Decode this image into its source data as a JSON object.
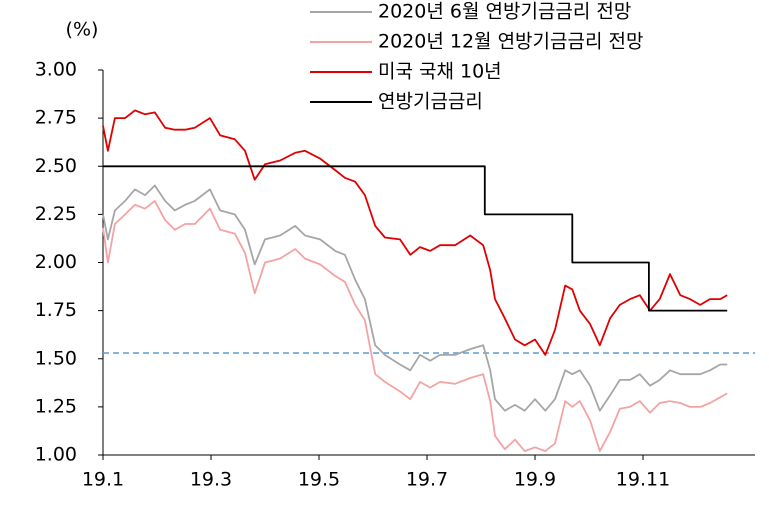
{
  "chart_data": {
    "type": "line",
    "y_label": "(%)",
    "xlim": [
      1,
      13
    ],
    "ylim": [
      1,
      3
    ],
    "xticks": [
      {
        "value": 1,
        "label": "19.1"
      },
      {
        "value": 3,
        "label": "19.3"
      },
      {
        "value": 5,
        "label": "19.5"
      },
      {
        "value": 7,
        "label": "19.7"
      },
      {
        "value": 9,
        "label": "19.9"
      },
      {
        "value": 11,
        "label": "19.11"
      }
    ],
    "yticks": [
      {
        "value": 1,
        "label": "1.00"
      },
      {
        "value": 1.25,
        "label": "1.25"
      },
      {
        "value": 1.5,
        "label": "1.50"
      },
      {
        "value": 1.75,
        "label": "1.75"
      },
      {
        "value": 2,
        "label": "2.00"
      },
      {
        "value": 2.25,
        "label": "2.25"
      },
      {
        "value": 2.5,
        "label": "2.50"
      },
      {
        "value": 2.75,
        "label": "2.75"
      },
      {
        "value": 3,
        "label": "3.00"
      }
    ],
    "legend": "top-right",
    "reference_line": {
      "value": 1.53,
      "color": "#5b9bd5"
    },
    "x": [
      1.0,
      1.09,
      1.22,
      1.41,
      1.59,
      1.78,
      1.96,
      2.15,
      2.33,
      2.52,
      2.7,
      2.98,
      3.17,
      3.44,
      3.63,
      3.81,
      4.0,
      4.28,
      4.56,
      4.74,
      5.02,
      5.3,
      5.48,
      5.67,
      5.85,
      6.04,
      6.22,
      6.5,
      6.69,
      6.87,
      7.06,
      7.24,
      7.52,
      7.8,
      8.04,
      8.17,
      8.26,
      8.44,
      8.63,
      8.81,
      9.0,
      9.19,
      9.37,
      9.56,
      9.69,
      9.83,
      10.02,
      10.2,
      10.39,
      10.57,
      10.76,
      10.94,
      11.13,
      11.31,
      11.5,
      11.69,
      11.87,
      12.06,
      12.24,
      12.43,
      12.56
    ],
    "series": [
      {
        "name": "2020년 6월 연방기금금리 전망",
        "color": "#a6a6a6",
        "values": [
          2.25,
          2.12,
          2.27,
          2.32,
          2.38,
          2.35,
          2.4,
          2.32,
          2.27,
          2.3,
          2.32,
          2.38,
          2.27,
          2.25,
          2.17,
          1.99,
          2.12,
          2.14,
          2.19,
          2.14,
          2.12,
          2.06,
          2.04,
          1.91,
          1.81,
          1.57,
          1.52,
          1.47,
          1.44,
          1.52,
          1.49,
          1.52,
          1.52,
          1.55,
          1.57,
          1.44,
          1.29,
          1.23,
          1.26,
          1.23,
          1.29,
          1.23,
          1.29,
          1.44,
          1.42,
          1.44,
          1.36,
          1.23,
          1.31,
          1.39,
          1.39,
          1.42,
          1.36,
          1.39,
          1.44,
          1.42,
          1.42,
          1.42,
          1.44,
          1.47,
          1.47
        ]
      },
      {
        "name": "2020년 12월 연방기금금리 전망",
        "color": "#f4a3a3",
        "values": [
          2.18,
          2.0,
          2.2,
          2.25,
          2.3,
          2.28,
          2.32,
          2.22,
          2.17,
          2.2,
          2.2,
          2.28,
          2.17,
          2.15,
          2.05,
          1.84,
          2.0,
          2.02,
          2.07,
          2.02,
          1.99,
          1.93,
          1.9,
          1.78,
          1.7,
          1.42,
          1.38,
          1.33,
          1.29,
          1.38,
          1.35,
          1.38,
          1.37,
          1.4,
          1.42,
          1.28,
          1.1,
          1.03,
          1.08,
          1.02,
          1.04,
          1.02,
          1.06,
          1.28,
          1.25,
          1.28,
          1.18,
          1.02,
          1.12,
          1.24,
          1.25,
          1.28,
          1.22,
          1.27,
          1.28,
          1.27,
          1.25,
          1.25,
          1.27,
          1.3,
          1.32
        ]
      },
      {
        "name": "미국 국채 10년",
        "color": "#e00000",
        "values": [
          2.71,
          2.58,
          2.75,
          2.75,
          2.79,
          2.77,
          2.78,
          2.7,
          2.69,
          2.69,
          2.7,
          2.75,
          2.66,
          2.64,
          2.58,
          2.43,
          2.51,
          2.53,
          2.57,
          2.58,
          2.54,
          2.48,
          2.44,
          2.42,
          2.35,
          2.19,
          2.13,
          2.12,
          2.04,
          2.08,
          2.06,
          2.09,
          2.09,
          2.14,
          2.09,
          1.96,
          1.81,
          1.71,
          1.6,
          1.57,
          1.6,
          1.52,
          1.65,
          1.88,
          1.86,
          1.75,
          1.68,
          1.57,
          1.71,
          1.78,
          1.81,
          1.83,
          1.75,
          1.81,
          1.94,
          1.83,
          1.81,
          1.78,
          1.81,
          1.81,
          1.83
        ]
      },
      {
        "name": "연방기금금리",
        "color": "#000000",
        "x": [
          1.0,
          8.07,
          8.07,
          9.69,
          9.69,
          11.11,
          11.11,
          12.56
        ],
        "values": [
          2.5,
          2.5,
          2.25,
          2.25,
          2.0,
          2.0,
          1.75,
          1.75
        ]
      }
    ]
  }
}
